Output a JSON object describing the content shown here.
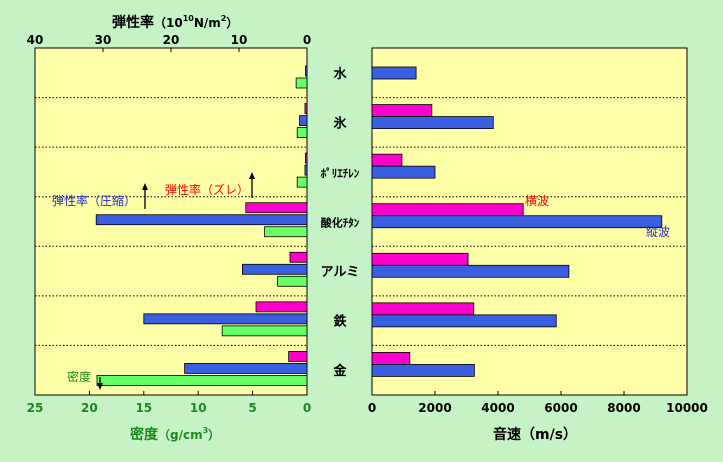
{
  "chart_data": [
    {
      "type": "bar",
      "orientation": "horizontal",
      "direction": "leftward",
      "panel": "left",
      "categories": [
        "水",
        "氷",
        "ﾎﾟﾘｴﾁﾚﾝ",
        "酸化ﾁﾀﾝ",
        "アルミ",
        "鉄",
        "金"
      ],
      "top_axis": {
        "label_main": "弾性率",
        "label_unit_base": "（10",
        "label_unit_exp": "10",
        "label_unit_mid": "N/m",
        "label_unit_sq": "2",
        "label_unit_end": "）",
        "range": [
          0,
          40
        ],
        "ticks": [
          "0",
          "10",
          "20",
          "30",
          "40"
        ]
      },
      "bottom_axis": {
        "label_main": "密度",
        "label_unit_base": "（g/cm",
        "label_unit_exp": "3",
        "label_unit_end": "）",
        "range": [
          0,
          25
        ],
        "ticks": [
          "0",
          "5",
          "10",
          "15",
          "20",
          "25"
        ]
      },
      "series": [
        {
          "name": "弾性率（ズレ）",
          "axis": "top",
          "color": "#ff00cc",
          "values": [
            null,
            0.3,
            0.1,
            9.0,
            2.5,
            7.5,
            2.7
          ]
        },
        {
          "name": "弾性率（圧縮）",
          "axis": "top",
          "color": "#3a5fe0",
          "values": [
            0.2,
            1.1,
            0.3,
            31.0,
            9.5,
            24.0,
            18.0
          ]
        },
        {
          "name": "密度",
          "axis": "bottom",
          "color": "#66ff66",
          "values": [
            1.0,
            0.9,
            0.9,
            3.9,
            2.7,
            7.8,
            19.3
          ]
        }
      ],
      "annotations": {
        "compression": "弾性率（圧縮）",
        "shear": "弾性率（ズレ）",
        "density": "密度"
      }
    },
    {
      "type": "bar",
      "orientation": "horizontal",
      "panel": "right",
      "categories": [
        "水",
        "氷",
        "ﾎﾟﾘｴﾁﾚﾝ",
        "酸化ﾁﾀﾝ",
        "アルミ",
        "鉄",
        "金"
      ],
      "xlabel": "音速（m/s）",
      "xlim": [
        0,
        10000
      ],
      "ticks": [
        "0",
        "2000",
        "4000",
        "6000",
        "8000",
        "10000"
      ],
      "series": [
        {
          "name": "横波",
          "color": "#ff00cc",
          "values": [
            null,
            1900,
            950,
            4800,
            3050,
            3230,
            1200
          ]
        },
        {
          "name": "縦波",
          "color": "#3a5fe0",
          "values": [
            1400,
            3850,
            2000,
            9200,
            6250,
            5850,
            3250
          ]
        }
      ]
    }
  ],
  "colors": {
    "background": "#c6f3c6",
    "plot_bg": "#ffffa8",
    "shear": "#ff00cc",
    "compression": "#3a5fe0",
    "density": "#66ff66",
    "density_text": "#1a8a1a",
    "compression_text": "#1f2fcc",
    "shear_text": "#ff0000"
  }
}
